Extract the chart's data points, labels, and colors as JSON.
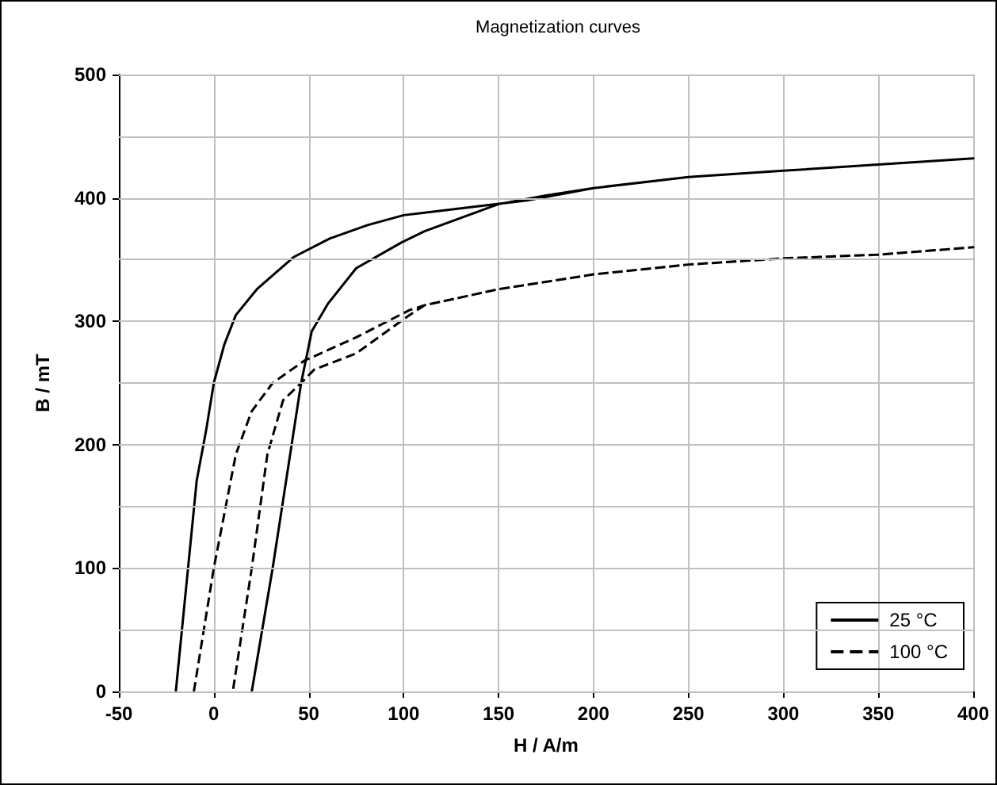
{
  "chart_data": {
    "type": "line",
    "title": "Magnetization curves",
    "xlabel": "H / A/m",
    "ylabel": "B / mT",
    "xlim": [
      -50,
      400
    ],
    "xticks": [
      -50,
      0,
      50,
      100,
      150,
      200,
      250,
      300,
      350,
      400
    ],
    "ylim": [
      0,
      500
    ],
    "yticks": [
      0,
      {
        "value": 50,
        "label": null
      },
      100,
      {
        "value": 150,
        "label": null
      },
      200,
      {
        "value": 250,
        "label": null
      },
      300,
      {
        "value": 350,
        "label": null
      },
      400,
      {
        "value": 450,
        "label": null
      },
      500
    ],
    "grid": true,
    "legend": "bottom right",
    "series": [
      {
        "name": "25 °C",
        "color": "#000000",
        "line_style": "solid",
        "x": [
          -20,
          -9,
          -4,
          0,
          5.5,
          11.6,
          22.7,
          42,
          61,
          81,
          100,
          111,
          165,
          200,
          250,
          300,
          350,
          400,
          350,
          300,
          250,
          200,
          175,
          150,
          111,
          99,
          75,
          60,
          51.6,
          46,
          42,
          31,
          20
        ],
        "values": [
          0,
          171,
          212,
          250,
          281,
          305,
          326,
          352,
          367,
          378,
          386,
          388,
          398,
          408,
          417,
          422,
          427,
          432,
          427,
          422,
          417,
          408,
          402,
          395,
          373,
          364,
          343,
          314,
          292,
          250,
          210,
          100,
          0
        ]
      },
      {
        "name": "100 °C",
        "color": "#000000",
        "line_style": "dashed",
        "x": [
          -10.5,
          0,
          11.6,
          19.9,
          31,
          47.6,
          75,
          103,
          111,
          150,
          200,
          250,
          300,
          350,
          400,
          350,
          300,
          250,
          200,
          150,
          111,
          103,
          75,
          53,
          46,
          36.5,
          28.2,
          20,
          10
        ],
        "values": [
          0,
          100,
          192,
          227,
          250,
          268,
          287,
          309,
          313,
          326,
          338,
          346,
          351,
          354,
          360,
          354,
          351,
          346,
          338,
          326,
          313,
          305,
          274,
          261,
          250,
          236,
          192,
          100,
          0
        ]
      }
    ]
  }
}
